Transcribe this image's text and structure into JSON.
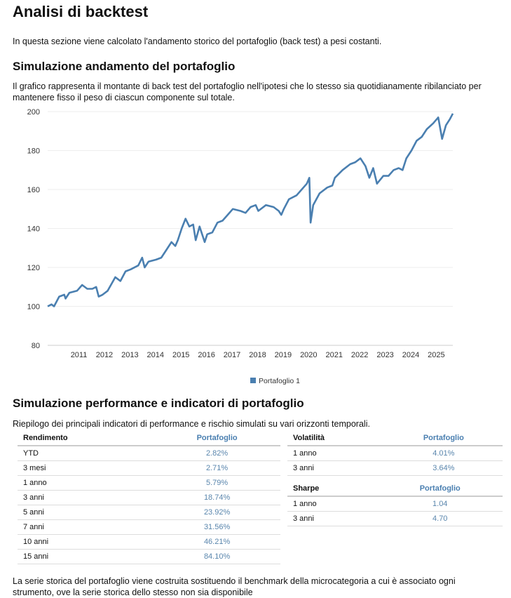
{
  "title": "Analisi di backtest",
  "intro": "In questa sezione viene calcolato l'andamento storico del portafoglio (back test) a pesi costanti.",
  "sim_title": "Simulazione andamento del portafoglio",
  "sim_desc": "Il grafico rappresenta il montante di back test del portafoglio nell'ipotesi che lo stesso sia quotidianamente ribilanciato per mantenere fisso il peso di ciascun componente sul totale.",
  "chart_data": {
    "type": "line",
    "title": "",
    "xlabel": "",
    "ylabel": "",
    "ylim": [
      80,
      200
    ],
    "yticks": [
      80,
      100,
      120,
      140,
      160,
      180,
      200
    ],
    "xlim": [
      2009.75,
      2025.62
    ],
    "xticks": [
      2011,
      2012,
      2013,
      2014,
      2015,
      2016,
      2017,
      2018,
      2019,
      2020,
      2021,
      2022,
      2023,
      2024,
      2025
    ],
    "grid": true,
    "legend_position": "bottom",
    "color": "#4a7fb0",
    "series": [
      {
        "name": "Portafoglio 1",
        "points": [
          [
            2009.75,
            100
          ],
          [
            2009.9,
            101
          ],
          [
            2010.0,
            100
          ],
          [
            2010.2,
            105
          ],
          [
            2010.4,
            106
          ],
          [
            2010.45,
            104
          ],
          [
            2010.6,
            107
          ],
          [
            2010.9,
            108
          ],
          [
            2011.1,
            111
          ],
          [
            2011.3,
            109
          ],
          [
            2011.5,
            109
          ],
          [
            2011.65,
            110
          ],
          [
            2011.75,
            105
          ],
          [
            2011.9,
            106
          ],
          [
            2012.1,
            108
          ],
          [
            2012.4,
            115
          ],
          [
            2012.6,
            113
          ],
          [
            2012.8,
            118
          ],
          [
            2013.0,
            119
          ],
          [
            2013.3,
            121
          ],
          [
            2013.45,
            125
          ],
          [
            2013.55,
            120
          ],
          [
            2013.7,
            123
          ],
          [
            2014.0,
            124
          ],
          [
            2014.2,
            125
          ],
          [
            2014.4,
            129
          ],
          [
            2014.6,
            133
          ],
          [
            2014.75,
            131
          ],
          [
            2014.85,
            134
          ],
          [
            2015.0,
            140
          ],
          [
            2015.15,
            145
          ],
          [
            2015.3,
            141
          ],
          [
            2015.45,
            142
          ],
          [
            2015.55,
            134
          ],
          [
            2015.7,
            141
          ],
          [
            2015.9,
            133
          ],
          [
            2016.0,
            137
          ],
          [
            2016.2,
            138
          ],
          [
            2016.4,
            143
          ],
          [
            2016.6,
            144
          ],
          [
            2016.8,
            147
          ],
          [
            2017.0,
            150
          ],
          [
            2017.3,
            149
          ],
          [
            2017.5,
            148
          ],
          [
            2017.7,
            151
          ],
          [
            2017.9,
            152
          ],
          [
            2018.0,
            149
          ],
          [
            2018.3,
            152
          ],
          [
            2018.6,
            151
          ],
          [
            2018.8,
            149
          ],
          [
            2018.9,
            147
          ],
          [
            2019.0,
            150
          ],
          [
            2019.2,
            155
          ],
          [
            2019.5,
            157
          ],
          [
            2019.7,
            160
          ],
          [
            2019.9,
            163
          ],
          [
            2020.0,
            166
          ],
          [
            2020.05,
            143
          ],
          [
            2020.15,
            152
          ],
          [
            2020.4,
            158
          ],
          [
            2020.7,
            161
          ],
          [
            2020.9,
            162
          ],
          [
            2021.0,
            166
          ],
          [
            2021.3,
            170
          ],
          [
            2021.6,
            173
          ],
          [
            2021.8,
            174
          ],
          [
            2022.0,
            176
          ],
          [
            2022.2,
            172
          ],
          [
            2022.35,
            166
          ],
          [
            2022.5,
            171
          ],
          [
            2022.65,
            163
          ],
          [
            2022.9,
            167
          ],
          [
            2023.1,
            167
          ],
          [
            2023.3,
            170
          ],
          [
            2023.5,
            171
          ],
          [
            2023.65,
            170
          ],
          [
            2023.8,
            176
          ],
          [
            2024.0,
            180
          ],
          [
            2024.2,
            185
          ],
          [
            2024.4,
            187
          ],
          [
            2024.6,
            191
          ],
          [
            2024.85,
            194
          ],
          [
            2025.05,
            197
          ],
          [
            2025.2,
            186
          ],
          [
            2025.35,
            193
          ],
          [
            2025.5,
            196
          ],
          [
            2025.62,
            199
          ]
        ]
      }
    ]
  },
  "perf_title": "Simulazione performance e indicatori di portafoglio",
  "perf_desc": "Riepilogo dei principali indicatori di performance e rischio simulati su vari orizzonti temporali.",
  "rendimento": {
    "h1": "Rendimento",
    "h2": "Portafoglio",
    "rows": [
      [
        "YTD",
        "2.82%"
      ],
      [
        "3 mesi",
        "2.71%"
      ],
      [
        "1 anno",
        "5.79%"
      ],
      [
        "3 anni",
        "18.74%"
      ],
      [
        "5 anni",
        "23.92%"
      ],
      [
        "7 anni",
        "31.56%"
      ],
      [
        "10 anni",
        "46.21%"
      ],
      [
        "15 anni",
        "84.10%"
      ]
    ]
  },
  "volatilita": {
    "h1": "Volatilità",
    "h2": "Portafoglio",
    "rows": [
      [
        "1 anno",
        "4.01%"
      ],
      [
        "3 anni",
        "3.64%"
      ]
    ]
  },
  "sharpe": {
    "h1": "Sharpe",
    "h2": "Portafoglio",
    "rows": [
      [
        "1 anno",
        "1.04"
      ],
      [
        "3 anni",
        "4.70"
      ]
    ]
  },
  "footer": "La serie storica del portafoglio viene costruita sostituendo il benchmark della microcategoria a cui è associato ogni strumento, ove la serie storica dello stesso non sia disponibile"
}
